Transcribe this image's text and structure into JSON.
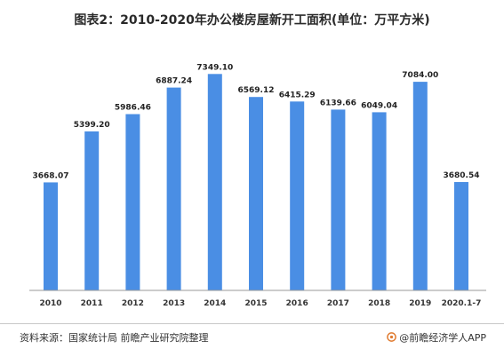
{
  "chart_data": {
    "type": "bar",
    "title": "图表2：2010-2020年办公楼房屋新开工面积(单位：万平方米)",
    "xlabel": "",
    "ylabel": "",
    "categories": [
      "2010",
      "2011",
      "2012",
      "2013",
      "2014",
      "2015",
      "2016",
      "2017",
      "2018",
      "2019",
      "2020.1-7"
    ],
    "values": [
      3668.07,
      5399.2,
      5986.46,
      6887.24,
      7349.1,
      6569.12,
      6415.29,
      6139.66,
      6049.04,
      7084.0,
      3680.54
    ],
    "value_labels": [
      "3668.07",
      "5399.20",
      "5986.46",
      "6887.24",
      "7349.10",
      "6569.12",
      "6415.29",
      "6139.66",
      "6049.04",
      "7084.00",
      "3680.54"
    ],
    "ylim": [
      0,
      7600
    ],
    "grid": false,
    "legend": "none",
    "bar_color": "#4a8ee4"
  },
  "footer": {
    "source": "资料来源：国家统计局 前瞻产业研究院整理",
    "brand": "@前瞻经济学人APP"
  }
}
